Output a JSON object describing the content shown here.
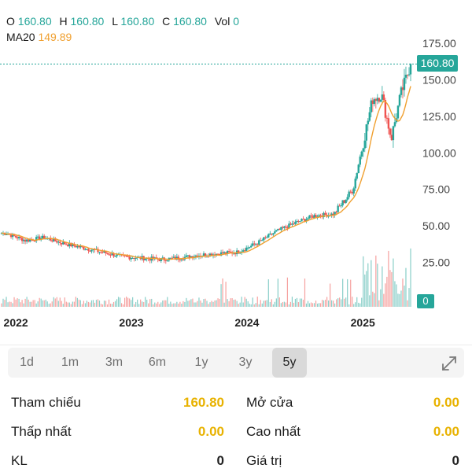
{
  "ohlc": {
    "o_label": "O",
    "o_value": "160.80",
    "h_label": "H",
    "h_value": "160.80",
    "l_label": "L",
    "l_value": "160.80",
    "c_label": "C",
    "c_value": "160.80",
    "vol_label": "Vol",
    "vol_value": "0"
  },
  "ma": {
    "label": "MA20",
    "value": "149.89"
  },
  "current_price_tag": "160.80",
  "volume_tag": "0",
  "colors": {
    "up": "#26a69a",
    "down": "#ef5350",
    "ma": "#f0a030",
    "active_value": "#e8b200"
  },
  "chart_data": {
    "type": "candlestick",
    "y_axis_ticks": [
      "175.00",
      "150.00",
      "125.00",
      "100.00",
      "75.00",
      "50.00",
      "25.00",
      "0"
    ],
    "ylim": [
      0,
      185
    ],
    "x_axis_ticks": [
      "2022",
      "2023",
      "2024",
      "2025"
    ],
    "close_series_approx": [
      {
        "date": "2021-12",
        "close": 45
      },
      {
        "date": "2022-02",
        "close": 40
      },
      {
        "date": "2022-04",
        "close": 42
      },
      {
        "date": "2022-06",
        "close": 38
      },
      {
        "date": "2022-08",
        "close": 35
      },
      {
        "date": "2022-10",
        "close": 32
      },
      {
        "date": "2022-12",
        "close": 29
      },
      {
        "date": "2023-02",
        "close": 28
      },
      {
        "date": "2023-04",
        "close": 27
      },
      {
        "date": "2023-06",
        "close": 28
      },
      {
        "date": "2023-08",
        "close": 30
      },
      {
        "date": "2023-10",
        "close": 31
      },
      {
        "date": "2023-12",
        "close": 32
      },
      {
        "date": "2024-02",
        "close": 38
      },
      {
        "date": "2024-04",
        "close": 46
      },
      {
        "date": "2024-06",
        "close": 52
      },
      {
        "date": "2024-08",
        "close": 57
      },
      {
        "date": "2024-10",
        "close": 58
      },
      {
        "date": "2024-12",
        "close": 75
      },
      {
        "date": "2025-02",
        "close": 137
      },
      {
        "date": "2025-03",
        "close": 140
      },
      {
        "date": "2025-04",
        "close": 110
      },
      {
        "date": "2025-05",
        "close": 140
      },
      {
        "date": "2025-06",
        "close": 160.8
      }
    ]
  },
  "ranges": [
    "1d",
    "1m",
    "3m",
    "6m",
    "1y",
    "3y",
    "5y"
  ],
  "active_range": "5y",
  "stats": {
    "tham_chieu_label": "Tham chiếu",
    "tham_chieu_value": "160.80",
    "mo_cua_label": "Mở cửa",
    "mo_cua_value": "0.00",
    "thap_nhat_label": "Thấp nhất",
    "thap_nhat_value": "0.00",
    "cao_nhat_label": "Cao nhất",
    "cao_nhat_value": "0.00",
    "kl_label": "KL",
    "kl_value": "0",
    "gia_tri_label": "Giá trị",
    "gia_tri_value": "0"
  }
}
